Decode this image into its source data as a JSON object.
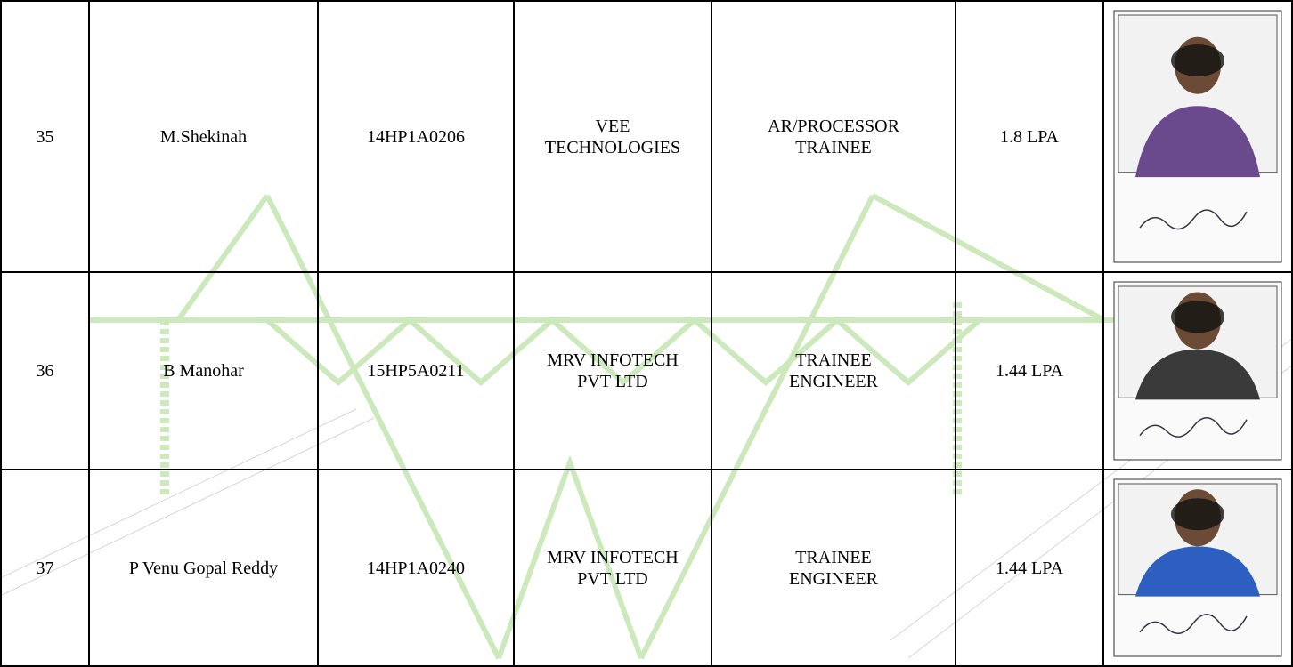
{
  "table": {
    "rows": [
      [
        "35",
        "M.Shekinah",
        "14HP1A0206",
        "VEE TECHNOLOGIES",
        "AR/PROCESSOR TRAINEE",
        "1.8 LPA"
      ],
      [
        "36",
        "B Manohar",
        "15HP5A0211",
        "MRV INFOTECH PVT LTD",
        "TRAINEE ENGINEER",
        "1.44 LPA"
      ],
      [
        "37",
        "P Venu Gopal Reddy",
        "14HP1A0240",
        "MRV INFOTECH PVT LTD",
        "TRAINEE ENGINEER",
        "1.44 LPA"
      ]
    ]
  }
}
